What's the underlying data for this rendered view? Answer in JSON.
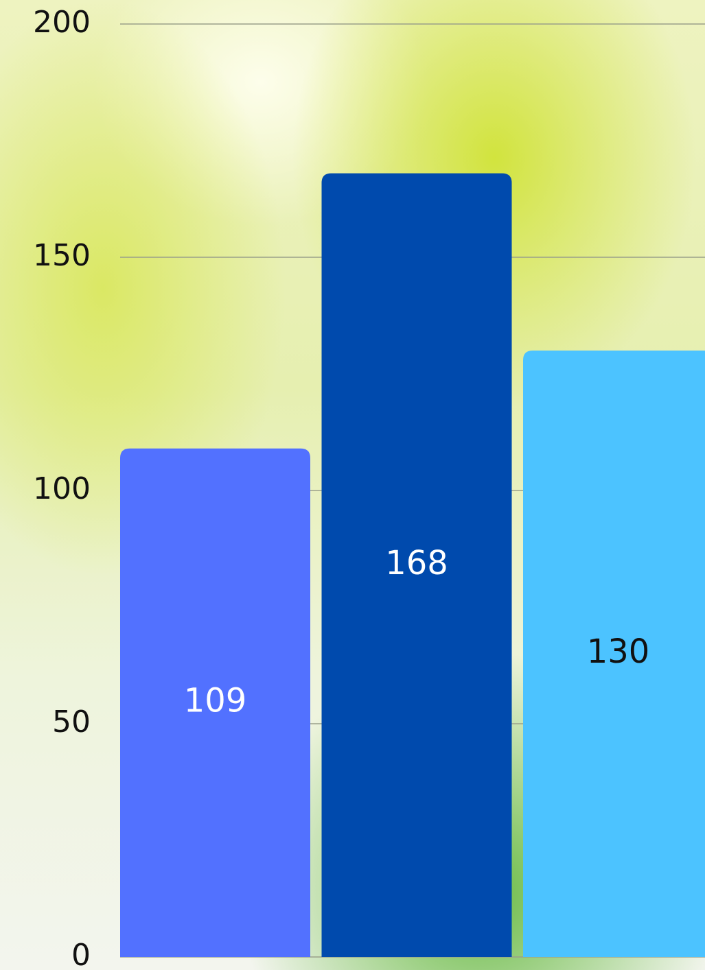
{
  "chart_data": {
    "type": "bar",
    "values": [
      109,
      168,
      130
    ],
    "colors": [
      "#5271ff",
      "#004aad",
      "#4cc3ff"
    ],
    "label_colors": [
      "#ffffff",
      "#ffffff",
      "#111111"
    ],
    "ylim": [
      0,
      200
    ],
    "yticks": [
      0,
      50,
      100,
      150,
      200
    ],
    "grid": true
  }
}
